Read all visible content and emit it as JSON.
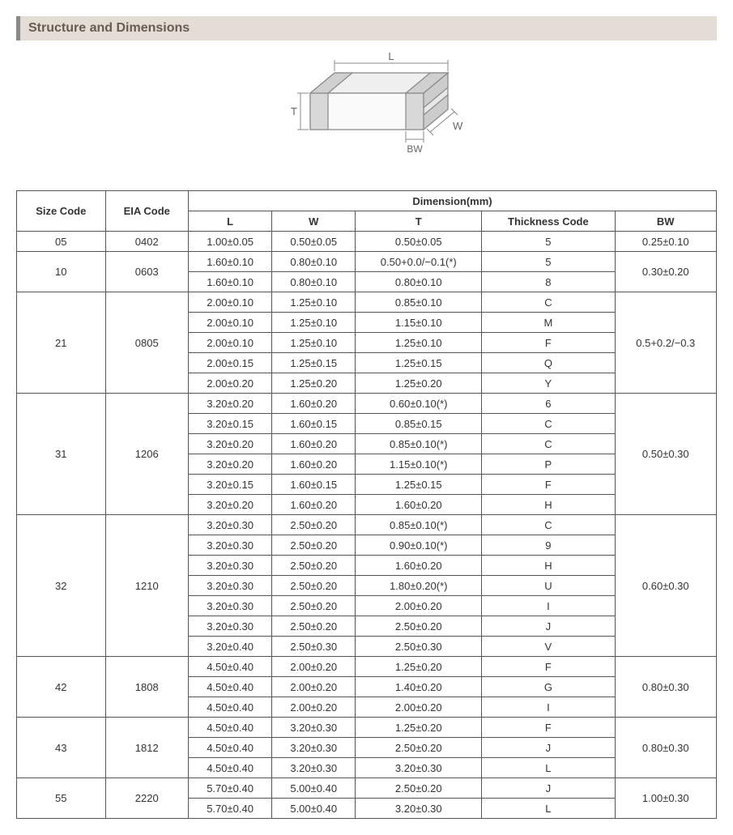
{
  "section_title": "Structure and Dimensions",
  "diagram": {
    "labels": {
      "L": "L",
      "W": "W",
      "T": "T",
      "BW": "BW"
    },
    "stroke": "#888888",
    "fill": "#f5f5f5",
    "text_color": "#666666"
  },
  "table": {
    "header": {
      "size_code": "Size Code",
      "eia_code": "EIA Code",
      "dimension": "Dimension(mm)",
      "L": "L",
      "W": "W",
      "T": "T",
      "thickness_code": "Thickness Code",
      "BW": "BW"
    },
    "groups": [
      {
        "size_code": "05",
        "eia_code": "0402",
        "bw": "0.25±0.10",
        "rows": [
          {
            "L": "1.00±0.05",
            "W": "0.50±0.05",
            "T": "0.50±0.05",
            "TC": "5"
          }
        ]
      },
      {
        "size_code": "10",
        "eia_code": "0603",
        "bw": "0.30±0.20",
        "rows": [
          {
            "L": "1.60±0.10",
            "W": "0.80±0.10",
            "T": "0.50+0.0/−0.1(*)",
            "TC": "5"
          },
          {
            "L": "1.60±0.10",
            "W": "0.80±0.10",
            "T": "0.80±0.10",
            "TC": "8"
          }
        ]
      },
      {
        "size_code": "21",
        "eia_code": "0805",
        "bw": "0.5+0.2/−0.3",
        "rows": [
          {
            "L": "2.00±0.10",
            "W": "1.25±0.10",
            "T": "0.85±0.10",
            "TC": "C"
          },
          {
            "L": "2.00±0.10",
            "W": "1.25±0.10",
            "T": "1.15±0.10",
            "TC": "M"
          },
          {
            "L": "2.00±0.10",
            "W": "1.25±0.10",
            "T": "1.25±0.10",
            "TC": "F"
          },
          {
            "L": "2.00±0.15",
            "W": "1.25±0.15",
            "T": "1.25±0.15",
            "TC": "Q"
          },
          {
            "L": "2.00±0.20",
            "W": "1.25±0.20",
            "T": "1.25±0.20",
            "TC": "Y"
          }
        ]
      },
      {
        "size_code": "31",
        "eia_code": "1206",
        "bw": "0.50±0.30",
        "rows": [
          {
            "L": "3.20±0.20",
            "W": "1.60±0.20",
            "T": "0.60±0.10(*)",
            "TC": "6"
          },
          {
            "L": "3.20±0.15",
            "W": "1.60±0.15",
            "T": "0.85±0.15",
            "TC": "C"
          },
          {
            "L": "3.20±0.20",
            "W": "1.60±0.20",
            "T": "0.85±0.10(*)",
            "TC": "C"
          },
          {
            "L": "3.20±0.20",
            "W": "1.60±0.20",
            "T": "1.15±0.10(*)",
            "TC": "P"
          },
          {
            "L": "3.20±0.15",
            "W": "1.60±0.15",
            "T": "1.25±0.15",
            "TC": "F"
          },
          {
            "L": "3.20±0.20",
            "W": "1.60±0.20",
            "T": "1.60±0.20",
            "TC": "H"
          }
        ]
      },
      {
        "size_code": "32",
        "eia_code": "1210",
        "bw": "0.60±0.30",
        "rows": [
          {
            "L": "3.20±0.30",
            "W": "2.50±0.20",
            "T": "0.85±0.10(*)",
            "TC": "C"
          },
          {
            "L": "3.20±0.30",
            "W": "2.50±0.20",
            "T": "0.90±0.10(*)",
            "TC": "9"
          },
          {
            "L": "3.20±0.30",
            "W": "2.50±0.20",
            "T": "1.60±0.20",
            "TC": "H"
          },
          {
            "L": "3.20±0.30",
            "W": "2.50±0.20",
            "T": "1.80±0.20(*)",
            "TC": "U"
          },
          {
            "L": "3.20±0.30",
            "W": "2.50±0.20",
            "T": "2.00±0.20",
            "TC": "I"
          },
          {
            "L": "3.20±0.30",
            "W": "2.50±0.20",
            "T": "2.50±0.20",
            "TC": "J"
          },
          {
            "L": "3.20±0.40",
            "W": "2.50±0.30",
            "T": "2.50±0.30",
            "TC": "V"
          }
        ]
      },
      {
        "size_code": "42",
        "eia_code": "1808",
        "bw": "0.80±0.30",
        "rows": [
          {
            "L": "4.50±0.40",
            "W": "2.00±0.20",
            "T": "1.25±0.20",
            "TC": "F"
          },
          {
            "L": "4.50±0.40",
            "W": "2.00±0.20",
            "T": "1.40±0.20",
            "TC": "G"
          },
          {
            "L": "4.50±0.40",
            "W": "2.00±0.20",
            "T": "2.00±0.20",
            "TC": "I"
          }
        ]
      },
      {
        "size_code": "43",
        "eia_code": "1812",
        "bw": "0.80±0.30",
        "rows": [
          {
            "L": "4.50±0.40",
            "W": "3.20±0.30",
            "T": "1.25±0.20",
            "TC": "F"
          },
          {
            "L": "4.50±0.40",
            "W": "3.20±0.30",
            "T": "2.50±0.20",
            "TC": "J"
          },
          {
            "L": "4.50±0.40",
            "W": "3.20±0.30",
            "T": "3.20±0.30",
            "TC": "L"
          }
        ]
      },
      {
        "size_code": "55",
        "eia_code": "2220",
        "bw": "1.00±0.30",
        "rows": [
          {
            "L": "5.70±0.40",
            "W": "5.00±0.40",
            "T": "2.50±0.20",
            "TC": "J"
          },
          {
            "L": "5.70±0.40",
            "W": "5.00±0.40",
            "T": "3.20±0.30",
            "TC": "L"
          }
        ]
      }
    ]
  }
}
